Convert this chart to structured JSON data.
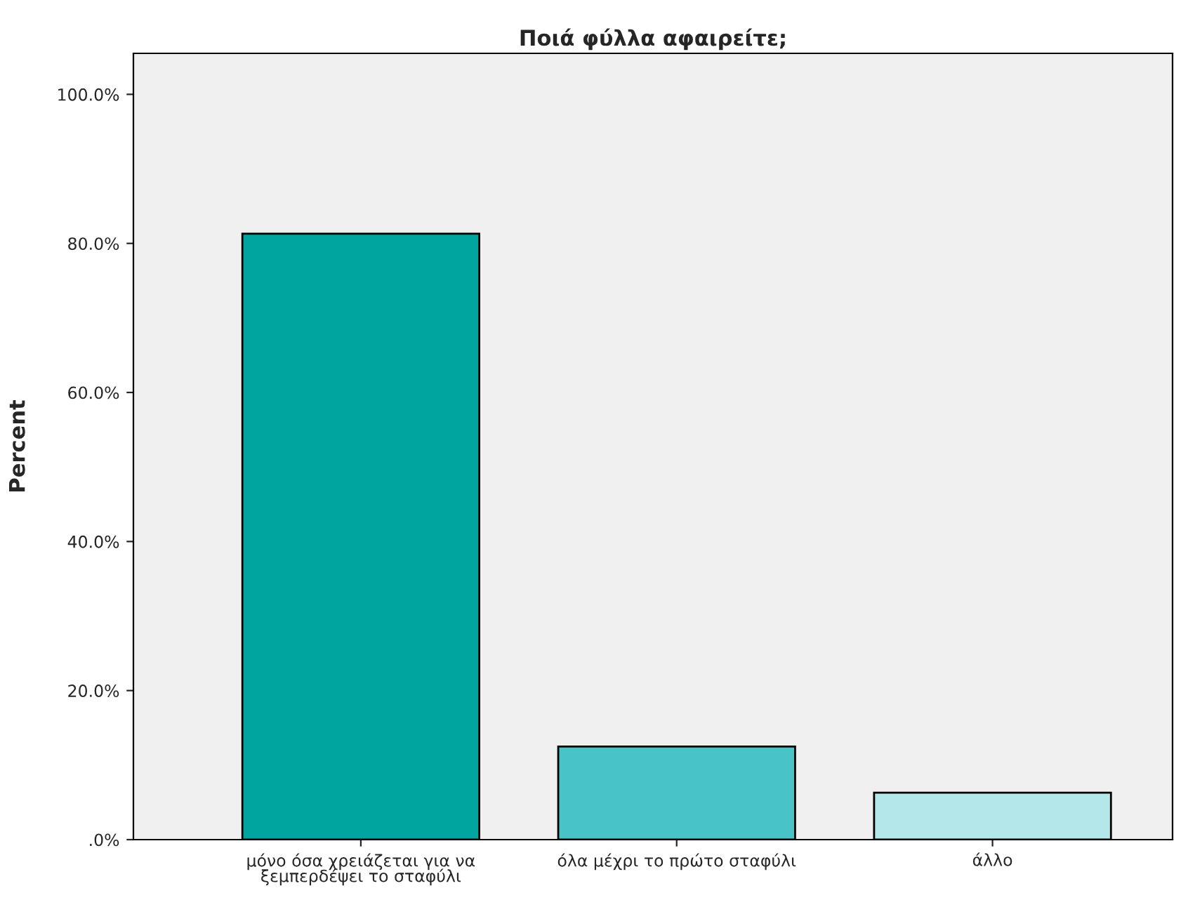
{
  "chart_data": {
    "type": "bar",
    "title": "Ποιά φύλλα αφαιρείτε;",
    "ylabel": "Percent",
    "categories": [
      "μόνο όσα χρειάζεται για να\nξεμπερδέψει το σταφύλι",
      "όλα μέχρι το πρώτο σταφύλι",
      "άλλο"
    ],
    "values": [
      81.3,
      12.5,
      6.3
    ],
    "colors": [
      "#00a5a0",
      "#48c3c6",
      "#b3e7e9"
    ],
    "ylim": [
      0,
      105.5
    ],
    "yticks": [
      {
        "value": 0,
        "label": ".0%"
      },
      {
        "value": 20,
        "label": "20.0%"
      },
      {
        "value": 40,
        "label": "40.0%"
      },
      {
        "value": 60,
        "label": "60.0%"
      },
      {
        "value": 80,
        "label": "80.0%"
      },
      {
        "value": 100,
        "label": "100.0%"
      }
    ],
    "grid": false,
    "legend": false
  }
}
